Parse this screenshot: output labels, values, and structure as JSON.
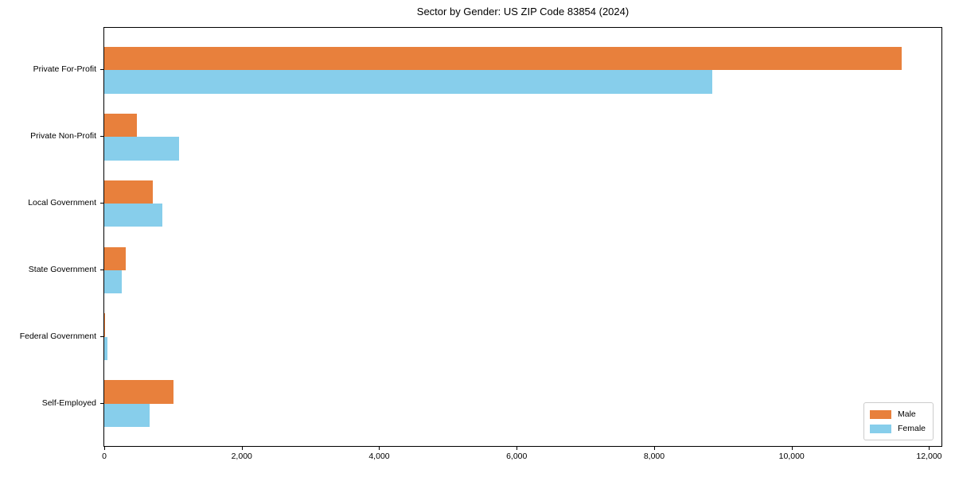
{
  "chart_data": {
    "type": "bar",
    "orientation": "horizontal",
    "title": "Sector by Gender: US ZIP Code 83854 (2024)",
    "categories": [
      "Private For-Profit",
      "Private Non-Profit",
      "Local Government",
      "State Government",
      "Federal Government",
      "Self-Employed"
    ],
    "series": [
      {
        "name": "Male",
        "color": "#e8803c",
        "values": [
          11600,
          475,
          705,
          310,
          10,
          1005
        ]
      },
      {
        "name": "Female",
        "color": "#87ceeb",
        "values": [
          8850,
          1090,
          845,
          260,
          45,
          660
        ]
      }
    ],
    "xlabel": "",
    "ylabel": "",
    "xlim": [
      0,
      12180
    ],
    "xticks": [
      0,
      2000,
      4000,
      6000,
      8000,
      10000,
      12000
    ],
    "xtick_labels": [
      "0",
      "2,000",
      "4,000",
      "6,000",
      "8,000",
      "10,000",
      "12,000"
    ],
    "legend": {
      "position": "lower right"
    },
    "grid": false,
    "background_color": "#ffffff",
    "spine_color": "#000000"
  }
}
